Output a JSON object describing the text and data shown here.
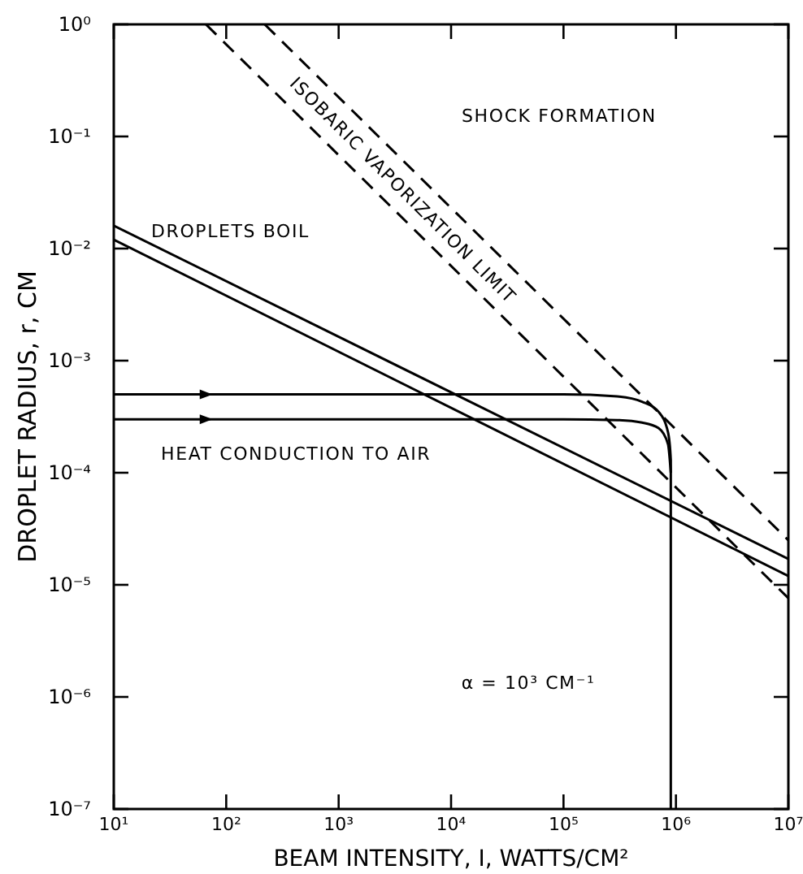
{
  "chart_data": {
    "type": "line",
    "xlabel": "BEAM INTENSITY, I, WATTS/CM²",
    "ylabel": "DROPLET RADIUS, r, CM",
    "log": "xy",
    "grid": false,
    "xlim": [
      10,
      10000000
    ],
    "ylim": [
      1e-07,
      1
    ],
    "xticks": [
      {
        "value": 10,
        "label": "10¹"
      },
      {
        "value": 100,
        "label": "10²"
      },
      {
        "value": 1000,
        "label": "10³"
      },
      {
        "value": 10000,
        "label": "10⁴"
      },
      {
        "value": 100000,
        "label": "10⁵"
      },
      {
        "value": 1000000,
        "label": "10⁶"
      },
      {
        "value": 10000000,
        "label": "10⁷"
      }
    ],
    "yticks": [
      {
        "value": 1e-07,
        "label": "10⁻⁷"
      },
      {
        "value": 1e-06,
        "label": "10⁻⁶"
      },
      {
        "value": 1e-05,
        "label": "10⁻⁵"
      },
      {
        "value": 0.0001,
        "label": "10⁻⁴"
      },
      {
        "value": 0.001,
        "label": "10⁻³"
      },
      {
        "value": 0.01,
        "label": "10⁻²"
      },
      {
        "value": 0.1,
        "label": "10⁻¹"
      },
      {
        "value": 1,
        "label": "10⁰"
      }
    ],
    "series": [
      {
        "color": "#000000",
        "line_style": "solid",
        "x": [
          10,
          10000000
        ],
        "values": [
          0.016,
          1.7e-05
        ]
      },
      {
        "color": "#000000",
        "line_style": "solid",
        "x": [
          10,
          10000000
        ],
        "values": [
          0.012,
          1.2e-05
        ]
      },
      {
        "color": "#000000",
        "line_style": "dashed",
        "x": [
          66,
          10000000
        ],
        "values": [
          1,
          7.6e-06
        ]
      },
      {
        "color": "#000000",
        "line_style": "dashed",
        "x": [
          220,
          10000000
        ],
        "values": [
          1,
          2.5e-05
        ]
      },
      {
        "color": "#000000",
        "line_style": "solid",
        "x": [
          10,
          100000,
          300000,
          500000,
          700000,
          850000,
          900000,
          900000
        ],
        "values": [
          0.0005,
          0.0005,
          0.00048,
          0.00043,
          0.00035,
          0.00023,
          0.00013,
          1e-07
        ]
      },
      {
        "color": "#000000",
        "line_style": "solid",
        "x": [
          10,
          100000,
          300000,
          500000,
          700000,
          850000,
          900000
        ],
        "values": [
          0.0003,
          0.0003,
          0.000295,
          0.00028,
          0.00025,
          0.00018,
          0.0001
        ]
      }
    ],
    "annotations": [
      "SHOCK FORMATION",
      "DROPLETS BOIL",
      "HEAT CONDUCTION TO AIR",
      "α = 10³ CM⁻¹",
      "ISOBARIC VAPORIZATION LIMIT"
    ]
  }
}
